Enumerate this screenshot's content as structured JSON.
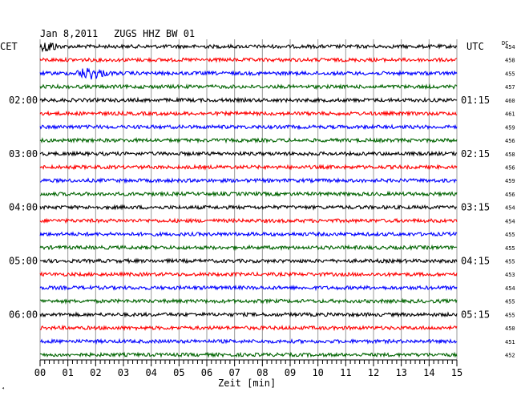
{
  "header": {
    "date": "Jan 8,2011",
    "station": "ZUGS HHZ BW 01"
  },
  "left_timezone": "CET",
  "right_timezone": "UTC",
  "dc_label": "DC",
  "x_axis_label": "Zeit [min]",
  "corner_mark": "⁴",
  "colors": {
    "black": "#000000",
    "red": "#ff0000",
    "blue": "#0000ff",
    "green": "#006400",
    "grid": "#999999"
  },
  "chart_data": {
    "type": "line",
    "title": "Jan 8,2011  ZUGS HHZ BW 01",
    "xlabel": "Zeit [min]",
    "xlim": [
      0,
      15
    ],
    "x_ticks": [
      "00",
      "01",
      "02",
      "03",
      "04",
      "05",
      "06",
      "07",
      "08",
      "09",
      "10",
      "11",
      "12",
      "13",
      "14",
      "15"
    ],
    "left_hour_labels": [
      "02:00",
      "03:00",
      "04:00",
      "05:00",
      "06:00"
    ],
    "right_hour_labels": [
      "01:15",
      "02:15",
      "03:15",
      "04:15",
      "05:15"
    ],
    "hour_label_trace_index": [
      4,
      8,
      12,
      16,
      20
    ],
    "traces": [
      {
        "color": "black",
        "dc": "454",
        "event": {
          "start_min": 0.0,
          "end_min": 1.0,
          "amp": 1
        }
      },
      {
        "color": "red",
        "dc": "458"
      },
      {
        "color": "blue",
        "dc": "455",
        "event": {
          "start_min": 1.3,
          "end_min": 3.0,
          "amp": 1
        }
      },
      {
        "color": "green",
        "dc": "457"
      },
      {
        "color": "black",
        "dc": "460"
      },
      {
        "color": "red",
        "dc": "461"
      },
      {
        "color": "blue",
        "dc": "459"
      },
      {
        "color": "green",
        "dc": "456"
      },
      {
        "color": "black",
        "dc": "458"
      },
      {
        "color": "red",
        "dc": "456"
      },
      {
        "color": "blue",
        "dc": "459"
      },
      {
        "color": "green",
        "dc": "456"
      },
      {
        "color": "black",
        "dc": "454"
      },
      {
        "color": "red",
        "dc": "454"
      },
      {
        "color": "blue",
        "dc": "455"
      },
      {
        "color": "green",
        "dc": "455"
      },
      {
        "color": "black",
        "dc": "455"
      },
      {
        "color": "red",
        "dc": "453"
      },
      {
        "color": "blue",
        "dc": "454"
      },
      {
        "color": "green",
        "dc": "455"
      },
      {
        "color": "black",
        "dc": "455"
      },
      {
        "color": "red",
        "dc": "450"
      },
      {
        "color": "blue",
        "dc": "451"
      },
      {
        "color": "green",
        "dc": "452"
      }
    ]
  }
}
